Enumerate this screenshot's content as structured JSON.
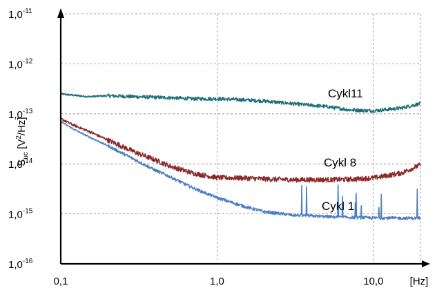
{
  "chart_data": {
    "type": "line",
    "x_scale": "log",
    "y_scale": "log",
    "xlim": [
      0.1,
      20
    ],
    "ylim": [
      1e-16,
      1e-11
    ],
    "grid": true,
    "x_ticks": [
      {
        "value": 0.1,
        "label": "0,1"
      },
      {
        "value": 1,
        "label": "1,0"
      },
      {
        "value": 10,
        "label": "10,0"
      }
    ],
    "x_unit_label": "[Hz]",
    "y_ticks": [
      {
        "value": 1e-11,
        "base": "1,0",
        "exp": "-11"
      },
      {
        "value": 1e-12,
        "base": "1,0",
        "exp": "-12"
      },
      {
        "value": 1e-13,
        "base": "1,0",
        "exp": "-13"
      },
      {
        "value": 1e-14,
        "base": "1,0",
        "exp": "-14"
      },
      {
        "value": 1e-15,
        "base": "1,0",
        "exp": "-15"
      },
      {
        "value": 1e-16,
        "base": "1,0",
        "exp": "-16"
      }
    ],
    "ylabel": {
      "main": "S",
      "sub": "uc",
      "rest1": " [V",
      "sup": "2",
      "rest2": "/Hz]"
    },
    "series": [
      {
        "name": "Cykl11",
        "color": "#1f6e78",
        "x": [
          0.1,
          0.15,
          0.2,
          0.3,
          0.5,
          0.7,
          1.0,
          1.5,
          2.0,
          3.0,
          5.0,
          7.0,
          10.0,
          15.0,
          20.0
        ],
        "y": [
          2.5e-13,
          2.2e-13,
          2.3e-13,
          2.2e-13,
          2.1e-13,
          2e-13,
          2e-13,
          1.9e-13,
          1.8e-13,
          1.6e-13,
          1.4e-13,
          1.2e-13,
          1.15e-13,
          1.3e-13,
          1.6e-13
        ]
      },
      {
        "name": "Cykl 8",
        "color": "#8b2a2a",
        "x": [
          0.1,
          0.12,
          0.15,
          0.2,
          0.3,
          0.4,
          0.5,
          0.7,
          1.0,
          1.5,
          2.0,
          3.0,
          5.0,
          7.0,
          10.0,
          15.0,
          20.0
        ],
        "y": [
          8e-14,
          6e-14,
          4.5e-14,
          3e-14,
          1.7e-14,
          1.2e-14,
          9e-15,
          6.5e-15,
          5.3e-15,
          5.2e-15,
          5e-15,
          4.8e-15,
          4.8e-15,
          4.9e-15,
          5.2e-15,
          6.5e-15,
          9.5e-15
        ]
      },
      {
        "name": "Cykl 1",
        "color": "#4a7ec4",
        "x": [
          0.1,
          0.12,
          0.15,
          0.2,
          0.3,
          0.4,
          0.5,
          0.7,
          1.0,
          1.5,
          2.0,
          3.0,
          5.0,
          7.0,
          10.0,
          15.0,
          20.0
        ],
        "y": [
          7e-14,
          5e-14,
          3.5e-14,
          2.3e-14,
          1.2e-14,
          7.5e-15,
          5.5e-15,
          3.3e-15,
          2.1e-15,
          1.4e-15,
          1.1e-15,
          9.5e-16,
          8.8e-16,
          8.5e-16,
          8.3e-16,
          8.2e-16,
          8.2e-16
        ]
      }
    ]
  }
}
